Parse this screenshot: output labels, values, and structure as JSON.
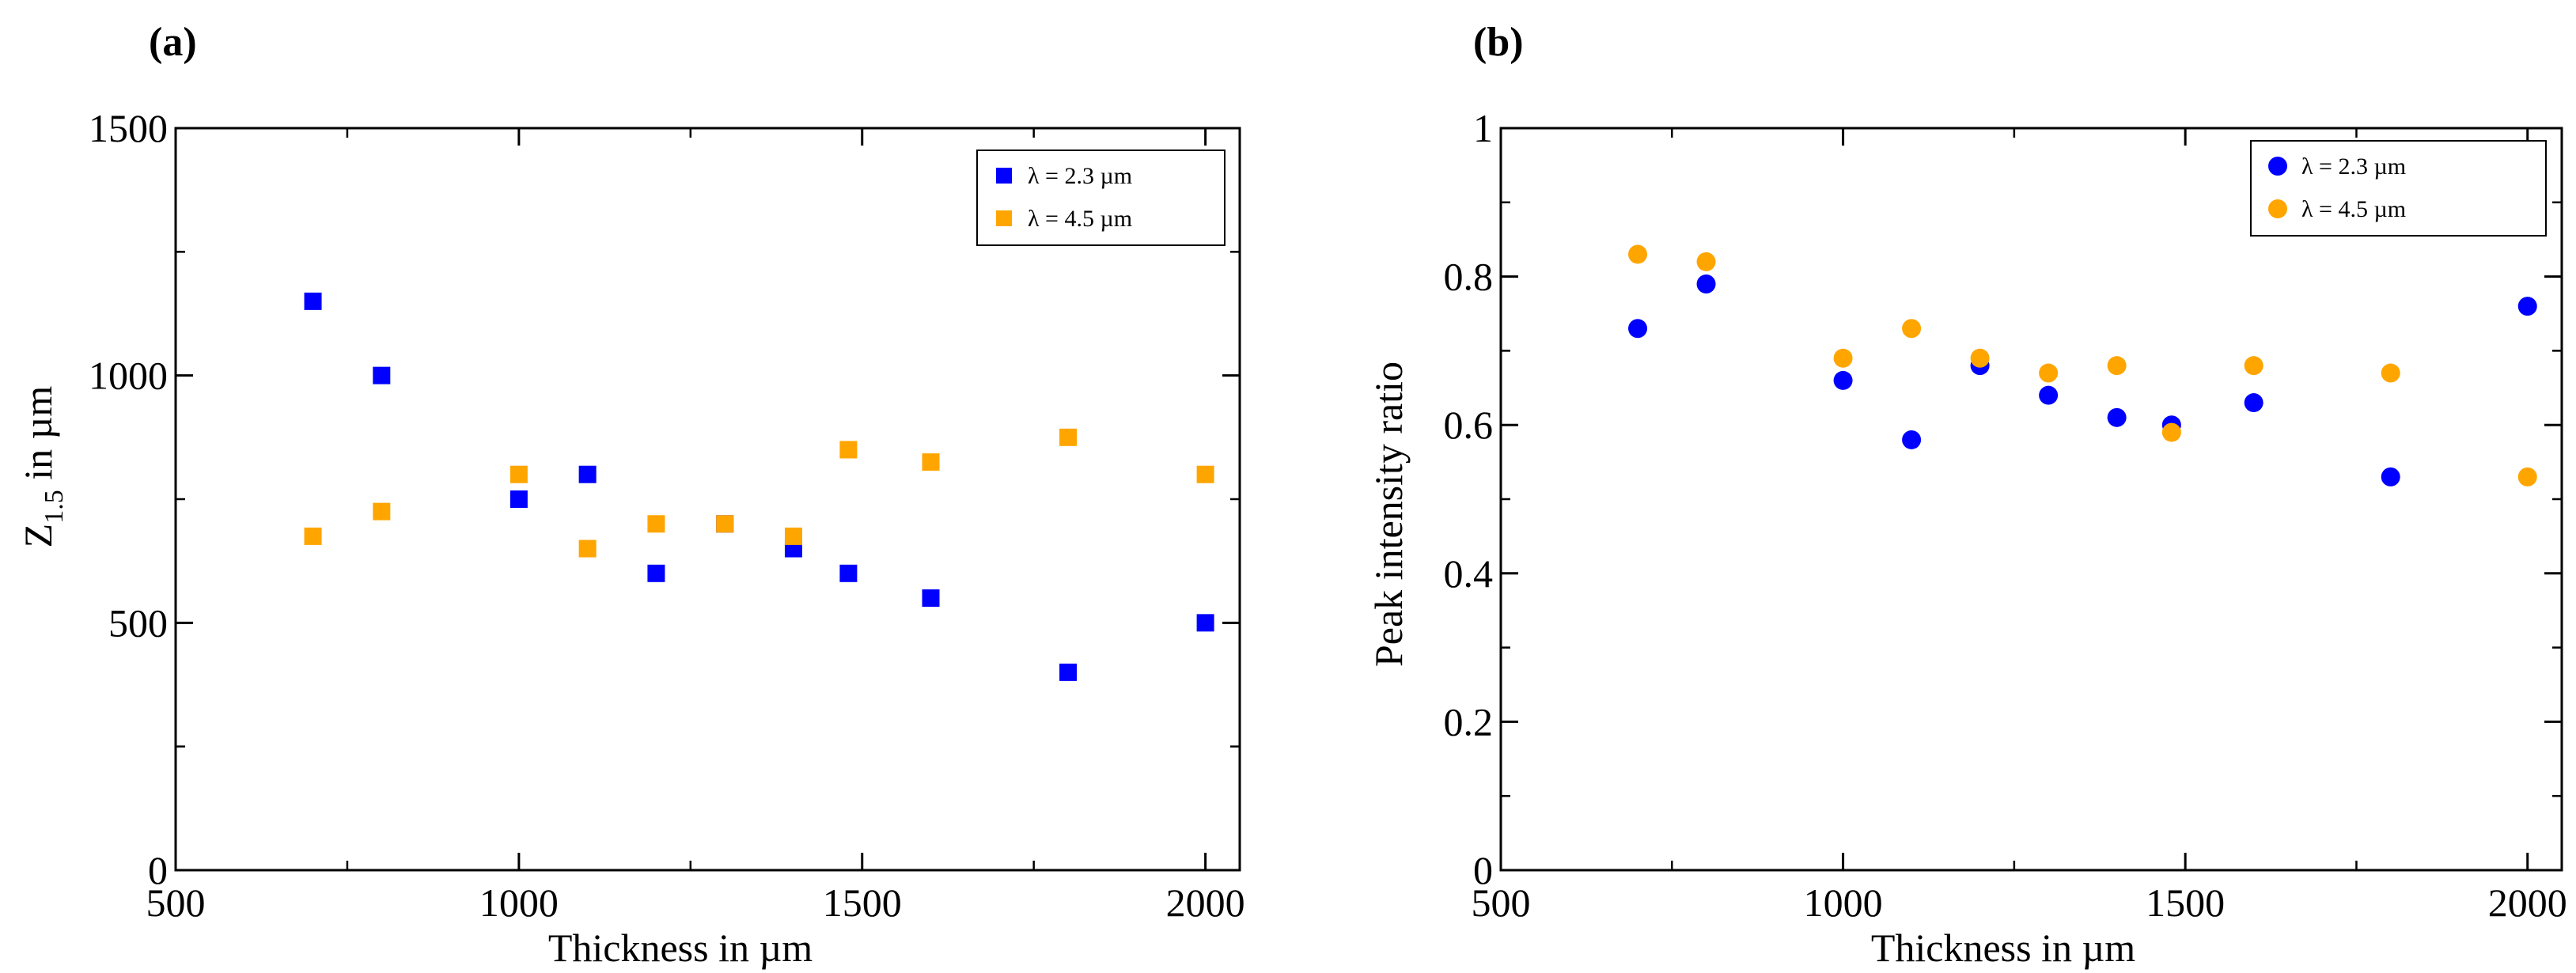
{
  "colors": {
    "blue": "#0000FF",
    "orange": "#FFA500",
    "axis": "#000000"
  },
  "chart_data": [
    {
      "id": "a",
      "panel_label": "(a)",
      "type": "scatter",
      "marker": "square",
      "xlabel": "Thickness in µm",
      "ylabel_main": "Z",
      "ylabel_sub": "1.5",
      "ylabel_tail": " in µm",
      "xlim": [
        500,
        2050
      ],
      "ylim": [
        0,
        1500
      ],
      "xticks": [
        500,
        1000,
        1500,
        2000
      ],
      "yticks": [
        0,
        500,
        1000,
        1500
      ],
      "xtick_labels": [
        "500",
        "1000",
        "1500",
        "2000"
      ],
      "ytick_labels": [
        "0",
        "500",
        "1000",
        "1500"
      ],
      "legend_position": "top-right",
      "series": [
        {
          "name": "λ = 2.3 µm",
          "color": "#0000FF",
          "x": [
            700,
            800,
            1000,
            1100,
            1200,
            1300,
            1400,
            1480,
            1600,
            1800,
            2000
          ],
          "y": [
            1150,
            1000,
            750,
            800,
            600,
            700,
            650,
            600,
            550,
            400,
            500
          ]
        },
        {
          "name": "λ = 4.5 µm",
          "color": "#FFA500",
          "x": [
            700,
            800,
            1000,
            1100,
            1200,
            1300,
            1400,
            1480,
            1600,
            1800,
            2000
          ],
          "y": [
            675,
            725,
            800,
            650,
            700,
            700,
            675,
            850,
            825,
            875,
            800
          ]
        }
      ]
    },
    {
      "id": "b",
      "panel_label": "(b)",
      "type": "scatter",
      "marker": "circle",
      "xlabel": "Thickness in µm",
      "ylabel_main": "Peak intensity ratio",
      "ylabel_sub": "",
      "ylabel_tail": "",
      "xlim": [
        500,
        2050
      ],
      "ylim": [
        0,
        1
      ],
      "xticks": [
        500,
        1000,
        1500,
        2000
      ],
      "yticks": [
        0,
        0.2,
        0.4,
        0.6,
        0.8,
        1
      ],
      "xtick_labels": [
        "500",
        "1000",
        "1500",
        "2000"
      ],
      "ytick_labels": [
        "0",
        "0.2",
        "0.4",
        "0.6",
        "0.8",
        "1"
      ],
      "legend_position": "top-right",
      "series": [
        {
          "name": "λ = 2.3 µm",
          "color": "#0000FF",
          "x": [
            700,
            800,
            1000,
            1100,
            1200,
            1300,
            1400,
            1480,
            1600,
            1800,
            2000
          ],
          "y": [
            0.73,
            0.79,
            0.66,
            0.58,
            0.68,
            0.64,
            0.61,
            0.6,
            0.63,
            0.53,
            0.76
          ]
        },
        {
          "name": "λ = 4.5 µm",
          "color": "#FFA500",
          "x": [
            700,
            800,
            1000,
            1100,
            1200,
            1300,
            1400,
            1480,
            1600,
            1800,
            2000
          ],
          "y": [
            0.83,
            0.82,
            0.69,
            0.73,
            0.69,
            0.67,
            0.68,
            0.59,
            0.68,
            0.67,
            0.53
          ]
        }
      ]
    }
  ]
}
